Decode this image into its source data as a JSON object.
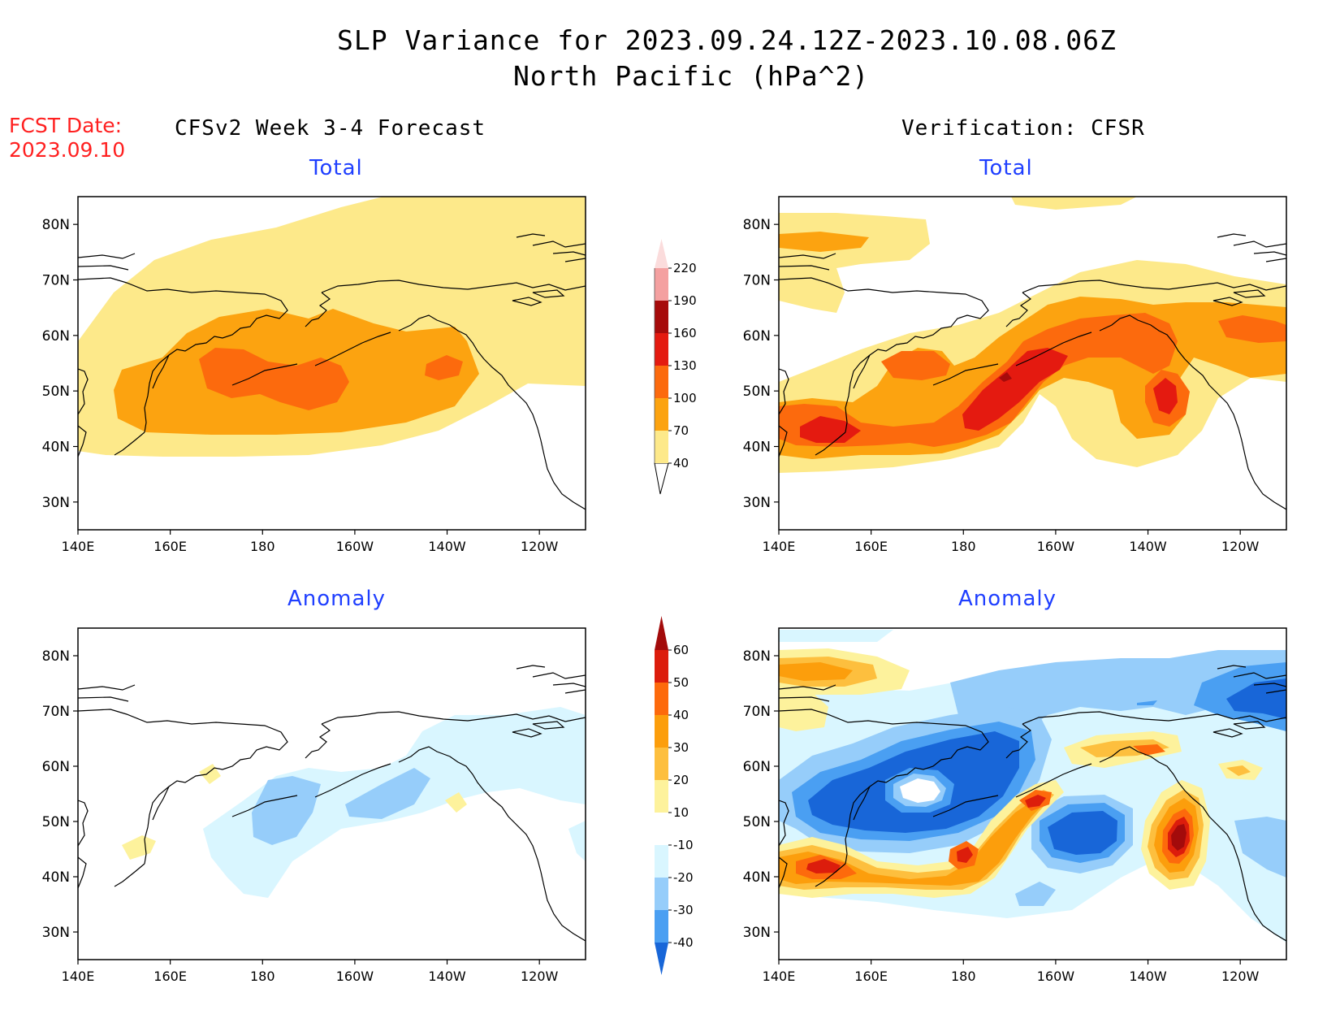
{
  "header": {
    "title": "SLP Variance for 2023.09.24.12Z-2023.10.08.06Z",
    "subtitle": "North Pacific (hPa^2)",
    "fcst_label": "FCST Date:",
    "fcst_date": "2023.09.10"
  },
  "columns": {
    "left": "CFSv2 Week 3-4 Forecast",
    "right": "Verification: CFSR"
  },
  "panels": {
    "tl": "Total",
    "tr": "Total",
    "bl": "Anomaly",
    "br": "Anomaly"
  },
  "axes": {
    "lat_labels": [
      "80N",
      "70N",
      "60N",
      "50N",
      "40N",
      "30N"
    ],
    "lon_labels": [
      "140E",
      "160E",
      "180",
      "160W",
      "140W",
      "120W"
    ]
  },
  "colorbars": {
    "total": {
      "levels": [
        "40",
        "70",
        "100",
        "130",
        "160",
        "190",
        "220"
      ],
      "colors": [
        "#fde98a",
        "#fca310",
        "#fc6a0d",
        "#e41a10",
        "#a60b0b",
        "#f4a0a0",
        "#fbdcdc"
      ]
    },
    "anomaly": {
      "levels": [
        "60",
        "50",
        "40",
        "30",
        "20",
        "10",
        "-10",
        "-20",
        "-30",
        "-40"
      ],
      "colors": [
        "#a30b0b",
        "#dc1d0c",
        "#fd6a0c",
        "#fc9e0c",
        "#fdbf3e",
        "#fdf29c",
        "#ffffff",
        "#d9f6ff",
        "#96cdfa",
        "#4a9ff2",
        "#1866d8"
      ]
    }
  }
}
